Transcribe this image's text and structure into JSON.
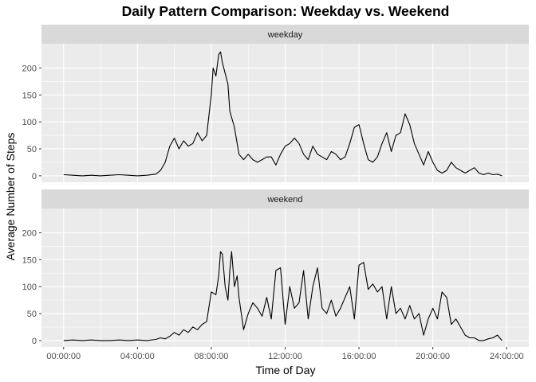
{
  "chart_data": {
    "type": "line",
    "title": "Daily Pattern Comparison: Weekday vs. Weekend",
    "xlabel": "Time of Day",
    "ylabel": "Average Number of Steps",
    "x_unit": "hours",
    "xlim": [
      -1.2,
      25.2
    ],
    "ylim": [
      -12,
      245
    ],
    "x_ticks": [
      {
        "value": 0,
        "label": "00:00:00"
      },
      {
        "value": 4,
        "label": "04:00:00"
      },
      {
        "value": 8,
        "label": "08:00:00"
      },
      {
        "value": 12,
        "label": "12:00:00"
      },
      {
        "value": 16,
        "label": "16:00:00"
      },
      {
        "value": 20,
        "label": "20:00:00"
      },
      {
        "value": 24,
        "label": "24:00:00"
      }
    ],
    "y_ticks": [
      0,
      50,
      100,
      150,
      200
    ],
    "grid": true,
    "legend": "none",
    "panels": [
      {
        "name": "weekday",
        "x": [
          0,
          0.5,
          1,
          1.5,
          2,
          2.5,
          3,
          3.5,
          4,
          4.5,
          5,
          5.25,
          5.5,
          5.75,
          6,
          6.25,
          6.5,
          6.75,
          7,
          7.25,
          7.5,
          7.75,
          8,
          8.1,
          8.25,
          8.4,
          8.5,
          8.6,
          8.75,
          8.9,
          9,
          9.25,
          9.5,
          9.75,
          10,
          10.25,
          10.5,
          10.75,
          11,
          11.25,
          11.5,
          11.75,
          12,
          12.25,
          12.5,
          12.75,
          13,
          13.25,
          13.5,
          13.75,
          14,
          14.25,
          14.5,
          14.75,
          15,
          15.25,
          15.5,
          15.75,
          16,
          16.25,
          16.5,
          16.75,
          17,
          17.25,
          17.5,
          17.75,
          18,
          18.25,
          18.5,
          18.75,
          19,
          19.25,
          19.5,
          19.75,
          20,
          20.25,
          20.5,
          20.75,
          21,
          21.25,
          21.5,
          21.75,
          22,
          22.25,
          22.5,
          22.75,
          23,
          23.25,
          23.5,
          23.75
        ],
        "values": [
          2,
          1,
          0,
          1,
          0,
          1,
          2,
          1,
          0,
          1,
          3,
          10,
          25,
          55,
          70,
          50,
          65,
          55,
          60,
          80,
          65,
          75,
          150,
          200,
          185,
          225,
          230,
          210,
          190,
          170,
          120,
          90,
          40,
          30,
          40,
          30,
          25,
          30,
          35,
          35,
          20,
          40,
          55,
          60,
          70,
          60,
          40,
          30,
          55,
          40,
          35,
          30,
          45,
          40,
          30,
          35,
          60,
          90,
          95,
          60,
          30,
          25,
          35,
          60,
          80,
          45,
          75,
          80,
          115,
          95,
          60,
          40,
          20,
          45,
          25,
          10,
          5,
          10,
          25,
          15,
          10,
          5,
          10,
          15,
          5,
          2,
          5,
          2,
          3,
          0
        ]
      },
      {
        "name": "weekend",
        "x": [
          0,
          0.5,
          1,
          1.5,
          2,
          2.5,
          3,
          3.5,
          4,
          4.5,
          5,
          5.25,
          5.5,
          5.75,
          6,
          6.25,
          6.5,
          6.75,
          7,
          7.25,
          7.5,
          7.75,
          8,
          8.25,
          8.4,
          8.5,
          8.6,
          8.75,
          8.9,
          9,
          9.1,
          9.25,
          9.4,
          9.5,
          9.75,
          10,
          10.25,
          10.5,
          10.75,
          11,
          11.25,
          11.5,
          11.75,
          12,
          12.25,
          12.5,
          12.75,
          13,
          13.25,
          13.5,
          13.75,
          14,
          14.25,
          14.5,
          14.75,
          15,
          15.25,
          15.5,
          15.75,
          16,
          16.25,
          16.5,
          16.75,
          17,
          17.25,
          17.5,
          17.75,
          18,
          18.25,
          18.5,
          18.75,
          19,
          19.25,
          19.5,
          19.75,
          20,
          20.25,
          20.5,
          20.75,
          21,
          21.25,
          21.5,
          21.75,
          22,
          22.25,
          22.5,
          22.75,
          23,
          23.25,
          23.5,
          23.75
        ],
        "values": [
          0,
          1,
          0,
          1,
          0,
          0,
          1,
          0,
          1,
          0,
          2,
          5,
          3,
          8,
          15,
          10,
          20,
          15,
          25,
          20,
          30,
          35,
          90,
          85,
          120,
          165,
          160,
          100,
          75,
          130,
          165,
          100,
          120,
          80,
          20,
          50,
          70,
          60,
          45,
          80,
          40,
          130,
          135,
          30,
          100,
          60,
          70,
          130,
          40,
          100,
          135,
          60,
          50,
          75,
          45,
          60,
          80,
          100,
          40,
          140,
          145,
          95,
          105,
          90,
          100,
          40,
          100,
          50,
          60,
          40,
          65,
          40,
          50,
          10,
          40,
          60,
          40,
          90,
          80,
          30,
          40,
          25,
          10,
          5,
          5,
          0,
          0,
          3,
          5,
          10,
          0
        ]
      }
    ]
  }
}
